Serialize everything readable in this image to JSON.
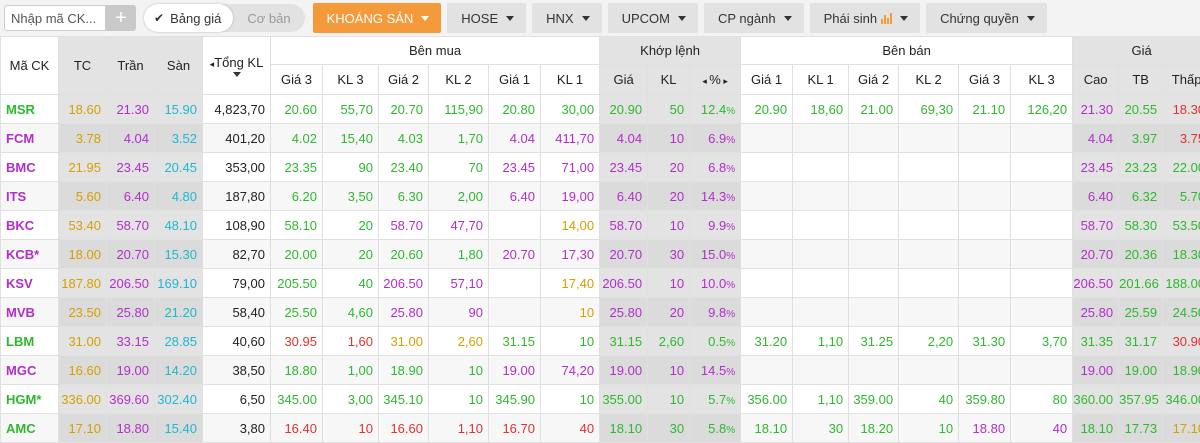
{
  "toolbar": {
    "search_placeholder": "Nhập mã CK...",
    "plus_label": "+",
    "view_toggle": {
      "active": "Bảng giá",
      "inactive": "Cơ bản"
    },
    "tabs": [
      {
        "label": "KHOÁNG SẢN",
        "active": true,
        "dropdown": true
      },
      {
        "label": "HOSE",
        "active": false,
        "dropdown": true
      },
      {
        "label": "HNX",
        "active": false,
        "dropdown": true
      },
      {
        "label": "UPCOM",
        "active": false,
        "dropdown": true
      },
      {
        "label": "CP ngành",
        "active": false,
        "dropdown": true
      },
      {
        "label": "Phái sinh",
        "active": false,
        "dropdown": true,
        "icon": "bar-chart-icon"
      },
      {
        "label": "Chứng quyền",
        "active": false,
        "dropdown": true
      }
    ]
  },
  "colors": {
    "up": "#2eb82e",
    "down": "#e03030",
    "ref": "#d4a000",
    "ceil": "#b22ec9",
    "floor": "#1fb8cc",
    "accent": "#f59a3b"
  },
  "table": {
    "group_headers": {
      "ma_ck": "Mã CK",
      "tc": "TC",
      "tran": "Trần",
      "san": "Sàn",
      "tong_kl": "Tổng KL",
      "ben_mua": "Bên mua",
      "khop_lenh": "Khớp lệnh",
      "ben_ban": "Bên bán",
      "gia": "Giá"
    },
    "sub_headers": {
      "mua": [
        "Giá 3",
        "KL 3",
        "Giá 2",
        "KL 2",
        "Giá 1",
        "KL 1"
      ],
      "khop": [
        "Giá",
        "KL",
        "%"
      ],
      "ban": [
        "Giá 1",
        "KL 1",
        "Giá 2",
        "KL 2",
        "Giá 3",
        "KL 3"
      ],
      "gia": [
        "Cao",
        "TB",
        "Thấp"
      ]
    },
    "rows": [
      {
        "code": "MSR",
        "code_c": "up",
        "tc": "18.60",
        "tran": "21.30",
        "san": "15.90",
        "tkl": "4,823,70",
        "mua": [
          [
            "20.60",
            "up"
          ],
          [
            "55,70",
            "up"
          ],
          [
            "20.70",
            "up"
          ],
          [
            "115,90",
            "up"
          ],
          [
            "20.80",
            "up"
          ],
          [
            "30,00",
            "up"
          ]
        ],
        "khop": [
          [
            "20.90",
            "up"
          ],
          [
            "50",
            "up"
          ],
          [
            "12.4",
            "up"
          ]
        ],
        "ban": [
          [
            "20.90",
            "up"
          ],
          [
            "18,60",
            "up"
          ],
          [
            "21.00",
            "up"
          ],
          [
            "69,30",
            "up"
          ],
          [
            "21.10",
            "up"
          ],
          [
            "126,20",
            "up"
          ]
        ],
        "gia": [
          [
            "21.30",
            "ceil"
          ],
          [
            "20.55",
            "up"
          ],
          [
            "18.30",
            "down"
          ]
        ]
      },
      {
        "code": "FCM",
        "code_c": "ceil",
        "tc": "3.78",
        "tran": "4.04",
        "san": "3.52",
        "tkl": "401,20",
        "mua": [
          [
            "4.02",
            "up"
          ],
          [
            "15,40",
            "up"
          ],
          [
            "4.03",
            "up"
          ],
          [
            "1,70",
            "up"
          ],
          [
            "4.04",
            "ceil"
          ],
          [
            "411,70",
            "ceil"
          ]
        ],
        "khop": [
          [
            "4.04",
            "ceil"
          ],
          [
            "10",
            "ceil"
          ],
          [
            "6.9",
            "ceil"
          ]
        ],
        "ban": [
          [
            "",
            ""
          ],
          [
            "",
            ""
          ],
          [
            "",
            ""
          ],
          [
            "",
            ""
          ],
          [
            "",
            ""
          ],
          [
            "",
            ""
          ]
        ],
        "gia": [
          [
            "4.04",
            "ceil"
          ],
          [
            "3.97",
            "up"
          ],
          [
            "3.75",
            "down"
          ]
        ]
      },
      {
        "code": "BMC",
        "code_c": "ceil",
        "tc": "21.95",
        "tran": "23.45",
        "san": "20.45",
        "tkl": "353,00",
        "mua": [
          [
            "23.35",
            "up"
          ],
          [
            "90",
            "up"
          ],
          [
            "23.40",
            "up"
          ],
          [
            "70",
            "up"
          ],
          [
            "23.45",
            "ceil"
          ],
          [
            "71,00",
            "ceil"
          ]
        ],
        "khop": [
          [
            "23.45",
            "ceil"
          ],
          [
            "20",
            "ceil"
          ],
          [
            "6.8",
            "ceil"
          ]
        ],
        "ban": [
          [
            "",
            ""
          ],
          [
            "",
            ""
          ],
          [
            "",
            ""
          ],
          [
            "",
            ""
          ],
          [
            "",
            ""
          ],
          [
            "",
            ""
          ]
        ],
        "gia": [
          [
            "23.45",
            "ceil"
          ],
          [
            "23.23",
            "up"
          ],
          [
            "22.00",
            "up"
          ]
        ]
      },
      {
        "code": "ITS",
        "code_c": "ceil",
        "tc": "5.60",
        "tran": "6.40",
        "san": "4.80",
        "tkl": "187,80",
        "mua": [
          [
            "6.20",
            "up"
          ],
          [
            "3,50",
            "up"
          ],
          [
            "6.30",
            "up"
          ],
          [
            "2,00",
            "up"
          ],
          [
            "6.40",
            "ceil"
          ],
          [
            "19,00",
            "ceil"
          ]
        ],
        "khop": [
          [
            "6.40",
            "ceil"
          ],
          [
            "20",
            "ceil"
          ],
          [
            "14.3",
            "ceil"
          ]
        ],
        "ban": [
          [
            "",
            ""
          ],
          [
            "",
            ""
          ],
          [
            "",
            ""
          ],
          [
            "",
            ""
          ],
          [
            "",
            ""
          ],
          [
            "",
            ""
          ]
        ],
        "gia": [
          [
            "6.40",
            "ceil"
          ],
          [
            "6.32",
            "up"
          ],
          [
            "5.70",
            "up"
          ]
        ]
      },
      {
        "code": "BKC",
        "code_c": "ceil",
        "tc": "53.40",
        "tran": "58.70",
        "san": "48.10",
        "tkl": "108,90",
        "mua": [
          [
            "58.10",
            "up"
          ],
          [
            "20",
            "up"
          ],
          [
            "58.70",
            "ceil"
          ],
          [
            "47,70",
            "ceil"
          ],
          [
            "",
            ""
          ],
          [
            "14,00",
            "ref"
          ]
        ],
        "khop": [
          [
            "58.70",
            "ceil"
          ],
          [
            "10",
            "ceil"
          ],
          [
            "9.9",
            "ceil"
          ]
        ],
        "ban": [
          [
            "",
            ""
          ],
          [
            "",
            ""
          ],
          [
            "",
            ""
          ],
          [
            "",
            ""
          ],
          [
            "",
            ""
          ],
          [
            "",
            ""
          ]
        ],
        "gia": [
          [
            "58.70",
            "ceil"
          ],
          [
            "58.30",
            "up"
          ],
          [
            "53.50",
            "up"
          ]
        ]
      },
      {
        "code": "KCB*",
        "code_c": "ceil",
        "tc": "18.00",
        "tran": "20.70",
        "san": "15.30",
        "tkl": "82,70",
        "mua": [
          [
            "20.00",
            "up"
          ],
          [
            "20",
            "up"
          ],
          [
            "20.60",
            "up"
          ],
          [
            "1,80",
            "up"
          ],
          [
            "20.70",
            "ceil"
          ],
          [
            "17,30",
            "ceil"
          ]
        ],
        "khop": [
          [
            "20.70",
            "ceil"
          ],
          [
            "30",
            "ceil"
          ],
          [
            "15.0",
            "ceil"
          ]
        ],
        "ban": [
          [
            "",
            ""
          ],
          [
            "",
            ""
          ],
          [
            "",
            ""
          ],
          [
            "",
            ""
          ],
          [
            "",
            ""
          ],
          [
            "",
            ""
          ]
        ],
        "gia": [
          [
            "20.70",
            "ceil"
          ],
          [
            "20.36",
            "up"
          ],
          [
            "18.30",
            "up"
          ]
        ]
      },
      {
        "code": "KSV",
        "code_c": "ceil",
        "tc": "187.80",
        "tran": "206.50",
        "san": "169.10",
        "tkl": "79,00",
        "mua": [
          [
            "205.50",
            "up"
          ],
          [
            "40",
            "up"
          ],
          [
            "206.50",
            "ceil"
          ],
          [
            "57,10",
            "ceil"
          ],
          [
            "",
            ""
          ],
          [
            "17,40",
            "ref"
          ]
        ],
        "khop": [
          [
            "206.50",
            "ceil"
          ],
          [
            "10",
            "ceil"
          ],
          [
            "10.0",
            "ceil"
          ]
        ],
        "ban": [
          [
            "",
            ""
          ],
          [
            "",
            ""
          ],
          [
            "",
            ""
          ],
          [
            "",
            ""
          ],
          [
            "",
            ""
          ],
          [
            "",
            ""
          ]
        ],
        "gia": [
          [
            "206.50",
            "ceil"
          ],
          [
            "201.66",
            "up"
          ],
          [
            "188.00",
            "up"
          ]
        ]
      },
      {
        "code": "MVB",
        "code_c": "ceil",
        "tc": "23.50",
        "tran": "25.80",
        "san": "21.20",
        "tkl": "58,40",
        "mua": [
          [
            "25.50",
            "up"
          ],
          [
            "4,60",
            "up"
          ],
          [
            "25.80",
            "ceil"
          ],
          [
            "90",
            "ceil"
          ],
          [
            "",
            ""
          ],
          [
            "10",
            "ref"
          ]
        ],
        "khop": [
          [
            "25.80",
            "ceil"
          ],
          [
            "20",
            "ceil"
          ],
          [
            "9.8",
            "ceil"
          ]
        ],
        "ban": [
          [
            "",
            ""
          ],
          [
            "",
            ""
          ],
          [
            "",
            ""
          ],
          [
            "",
            ""
          ],
          [
            "",
            ""
          ],
          [
            "",
            ""
          ]
        ],
        "gia": [
          [
            "25.80",
            "ceil"
          ],
          [
            "25.59",
            "up"
          ],
          [
            "24.50",
            "up"
          ]
        ]
      },
      {
        "code": "LBM",
        "code_c": "up",
        "tc": "31.00",
        "tran": "33.15",
        "san": "28.85",
        "tkl": "40,60",
        "mua": [
          [
            "30.95",
            "down"
          ],
          [
            "1,60",
            "down"
          ],
          [
            "31.00",
            "ref"
          ],
          [
            "2,60",
            "ref"
          ],
          [
            "31.15",
            "up"
          ],
          [
            "10",
            "up"
          ]
        ],
        "khop": [
          [
            "31.15",
            "up"
          ],
          [
            "2,60",
            "up"
          ],
          [
            "0.5",
            "up"
          ]
        ],
        "ban": [
          [
            "31.20",
            "up"
          ],
          [
            "1,10",
            "up"
          ],
          [
            "31.25",
            "up"
          ],
          [
            "2,20",
            "up"
          ],
          [
            "31.30",
            "up"
          ],
          [
            "3,70",
            "up"
          ]
        ],
        "gia": [
          [
            "31.35",
            "up"
          ],
          [
            "31.17",
            "up"
          ],
          [
            "30.90",
            "down"
          ]
        ]
      },
      {
        "code": "MGC",
        "code_c": "ceil",
        "tc": "16.60",
        "tran": "19.00",
        "san": "14.20",
        "tkl": "38,50",
        "mua": [
          [
            "18.80",
            "up"
          ],
          [
            "1,00",
            "up"
          ],
          [
            "18.90",
            "up"
          ],
          [
            "10",
            "up"
          ],
          [
            "19.00",
            "ceil"
          ],
          [
            "74,20",
            "ceil"
          ]
        ],
        "khop": [
          [
            "19.00",
            "ceil"
          ],
          [
            "10",
            "ceil"
          ],
          [
            "14.5",
            "ceil"
          ]
        ],
        "ban": [
          [
            "",
            ""
          ],
          [
            "",
            ""
          ],
          [
            "",
            ""
          ],
          [
            "",
            ""
          ],
          [
            "",
            ""
          ],
          [
            "",
            ""
          ]
        ],
        "gia": [
          [
            "19.00",
            "ceil"
          ],
          [
            "19.00",
            "up"
          ],
          [
            "18.90",
            "up"
          ]
        ]
      },
      {
        "code": "HGM*",
        "code_c": "up",
        "tc": "336.00",
        "tran": "369.60",
        "san": "302.40",
        "tkl": "6,50",
        "mua": [
          [
            "345.00",
            "up"
          ],
          [
            "3,00",
            "up"
          ],
          [
            "345.10",
            "up"
          ],
          [
            "10",
            "up"
          ],
          [
            "345.90",
            "up"
          ],
          [
            "10",
            "up"
          ]
        ],
        "khop": [
          [
            "355.00",
            "up"
          ],
          [
            "10",
            "up"
          ],
          [
            "5.7",
            "up"
          ]
        ],
        "ban": [
          [
            "356.00",
            "up"
          ],
          [
            "1,10",
            "up"
          ],
          [
            "359.00",
            "up"
          ],
          [
            "40",
            "up"
          ],
          [
            "359.80",
            "up"
          ],
          [
            "80",
            "up"
          ]
        ],
        "gia": [
          [
            "360.00",
            "up"
          ],
          [
            "357.95",
            "up"
          ],
          [
            "346.00",
            "up"
          ]
        ]
      },
      {
        "code": "AMC",
        "code_c": "up",
        "tc": "17.10",
        "tran": "18.80",
        "san": "15.40",
        "tkl": "3,80",
        "mua": [
          [
            "16.40",
            "down"
          ],
          [
            "10",
            "down"
          ],
          [
            "16.60",
            "down"
          ],
          [
            "1,10",
            "down"
          ],
          [
            "16.70",
            "down"
          ],
          [
            "40",
            "down"
          ]
        ],
        "khop": [
          [
            "18.10",
            "up"
          ],
          [
            "30",
            "up"
          ],
          [
            "5.8",
            "up"
          ]
        ],
        "ban": [
          [
            "18.10",
            "up"
          ],
          [
            "30",
            "up"
          ],
          [
            "18.20",
            "up"
          ],
          [
            "10",
            "up"
          ],
          [
            "18.80",
            "ceil"
          ],
          [
            "40",
            "ceil"
          ]
        ],
        "gia": [
          [
            "18.10",
            "up"
          ],
          [
            "17.73",
            "up"
          ],
          [
            "17.10",
            "ref"
          ]
        ]
      }
    ]
  }
}
